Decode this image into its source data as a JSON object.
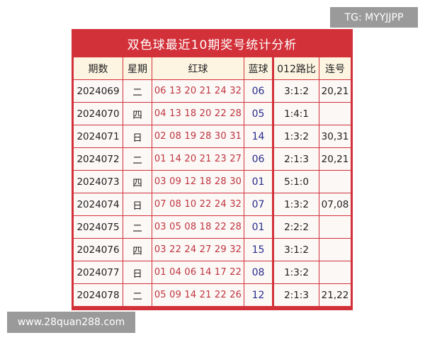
{
  "watermarks": {
    "top": "TG: MYYJJPP",
    "bottom": "www.28quan288.com"
  },
  "title": "双色球最近10期奖号统计分析",
  "headers": [
    "期数",
    "星期",
    "红球",
    "蓝球",
    "012路比",
    "连号"
  ],
  "rows": [
    {
      "issue": "2024069",
      "weekday": "二",
      "red": "06 13 20 21 24 32",
      "blue": "06",
      "ratio": "3:1:2",
      "consecutive": "20,21"
    },
    {
      "issue": "2024070",
      "weekday": "四",
      "red": "04 13 18 20 22 28",
      "blue": "05",
      "ratio": "1:4:1",
      "consecutive": ""
    },
    {
      "issue": "2024071",
      "weekday": "日",
      "red": "02 08 19 28 30 31",
      "blue": "14",
      "ratio": "1:3:2",
      "consecutive": "30,31"
    },
    {
      "issue": "2024072",
      "weekday": "二",
      "red": "01 14 20 21 23 27",
      "blue": "06",
      "ratio": "2:1:3",
      "consecutive": "20,21"
    },
    {
      "issue": "2024073",
      "weekday": "四",
      "red": "03 09 12 18 28 30",
      "blue": "01",
      "ratio": "5:1:0",
      "consecutive": ""
    },
    {
      "issue": "2024074",
      "weekday": "日",
      "red": "07 08 10 22 24 32",
      "blue": "07",
      "ratio": "1:3:2",
      "consecutive": "07,08"
    },
    {
      "issue": "2024075",
      "weekday": "二",
      "red": "03 05 08 18 22 28",
      "blue": "01",
      "ratio": "2:2:2",
      "consecutive": ""
    },
    {
      "issue": "2024076",
      "weekday": "四",
      "red": "03 22 24 27 29 32",
      "blue": "15",
      "ratio": "3:1:2",
      "consecutive": ""
    },
    {
      "issue": "2024077",
      "weekday": "日",
      "red": "01 04 06 14 17 22",
      "blue": "08",
      "ratio": "1:3:2",
      "consecutive": ""
    },
    {
      "issue": "2024078",
      "weekday": "二",
      "red": "05 09 14 21 22 26",
      "blue": "12",
      "ratio": "2:1:3",
      "consecutive": "21,22"
    }
  ],
  "colors": {
    "frame": "#d3313a",
    "red_ball": "#c0343f",
    "blue_ball": "#2a2e8c",
    "header_bg": "#fdf5e2"
  }
}
